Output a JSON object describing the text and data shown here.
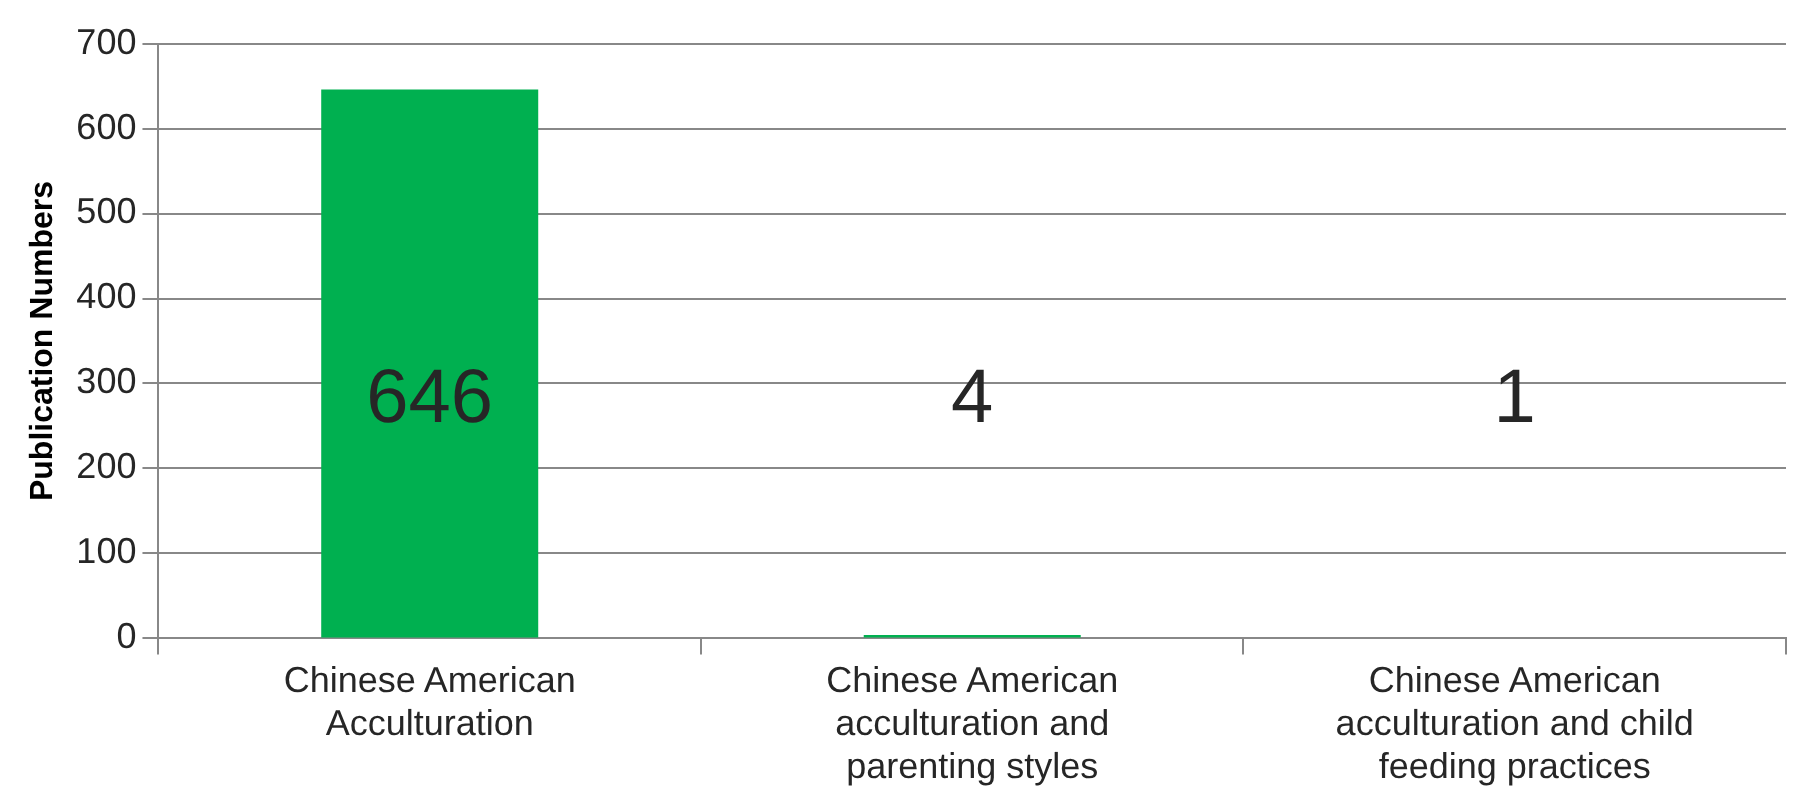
{
  "chart_data": {
    "type": "bar",
    "ylabel": "Publication Numbers",
    "categories": [
      "Chinese American Acculturation",
      "Chinese American acculturation and parenting styles",
      "Chinese American acculturation and child feeding practices"
    ],
    "values": [
      646,
      4,
      1
    ],
    "color": "#00b050",
    "ylim": [
      0,
      700
    ],
    "yticks": [
      0,
      100,
      200,
      300,
      400,
      500,
      600,
      700
    ],
    "grid": "y",
    "data_labels": true,
    "legend": false
  }
}
